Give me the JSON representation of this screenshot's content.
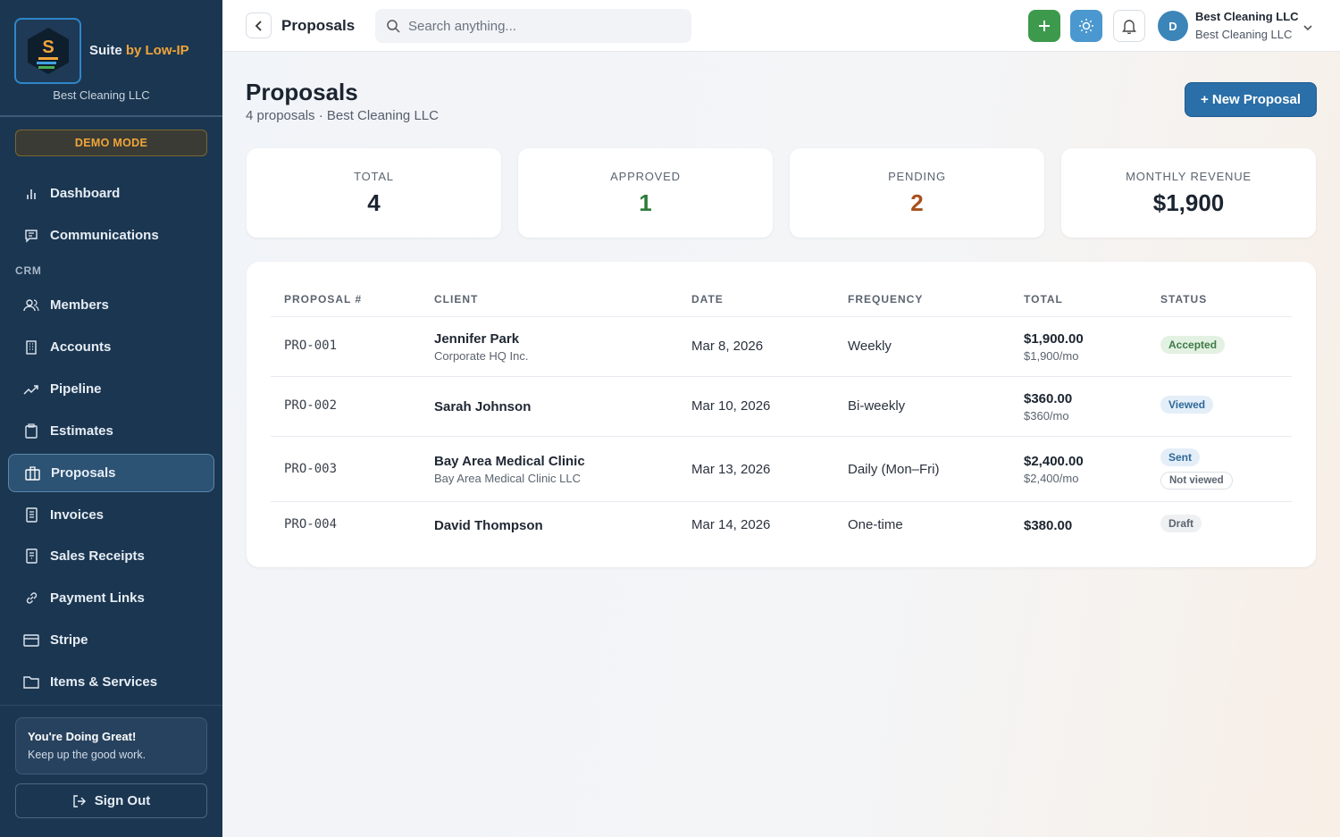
{
  "sidebar": {
    "brand_suite": "Suite ",
    "brand_by": "by Low-IP",
    "logo_letter": "S",
    "company": "Best Cleaning LLC",
    "demo_mode": "DEMO MODE",
    "section_crm": "CRM",
    "items": [
      {
        "label": "Dashboard",
        "icon": "bar-chart-icon"
      },
      {
        "label": "Communications",
        "icon": "chat-icon"
      },
      {
        "label": "Members",
        "icon": "users-icon"
      },
      {
        "label": "Accounts",
        "icon": "building-icon"
      },
      {
        "label": "Pipeline",
        "icon": "trend-icon"
      },
      {
        "label": "Estimates",
        "icon": "clipboard-icon"
      },
      {
        "label": "Proposals",
        "icon": "briefcase-icon",
        "active": true
      },
      {
        "label": "Invoices",
        "icon": "document-icon"
      },
      {
        "label": "Sales Receipts",
        "icon": "receipt-icon"
      },
      {
        "label": "Payment Links",
        "icon": "link-icon"
      },
      {
        "label": "Stripe",
        "icon": "card-icon"
      },
      {
        "label": "Items & Services",
        "icon": "folder-icon"
      }
    ],
    "encourage_title": "You're Doing Great!",
    "encourage_sub": "Keep up the good work.",
    "sign_out": "Sign Out"
  },
  "topbar": {
    "title": "Proposals",
    "search_placeholder": "Search anything...",
    "avatar_initial": "D",
    "account_name": "Best Cleaning LLC",
    "account_sub": "Best Cleaning LLC"
  },
  "page": {
    "title": "Proposals",
    "subtitle": "4 proposals · Best Cleaning LLC",
    "new_button": "+ New Proposal"
  },
  "stats": [
    {
      "label": "TOTAL",
      "value": "4",
      "color": "#1b2430"
    },
    {
      "label": "APPROVED",
      "value": "1",
      "color": "#2e7d3a"
    },
    {
      "label": "PENDING",
      "value": "2",
      "color": "#a8501d"
    },
    {
      "label": "MONTHLY REVENUE",
      "value": "$1,900",
      "color": "#1b2430"
    }
  ],
  "table": {
    "headers": [
      "PROPOSAL #",
      "CLIENT",
      "DATE",
      "FREQUENCY",
      "TOTAL",
      "STATUS"
    ],
    "rows": [
      {
        "number": "PRO-001",
        "client": "Jennifer Park",
        "client_sub": "Corporate HQ Inc.",
        "date": "Mar 8, 2026",
        "frequency": "Weekly",
        "total": "$1,900.00",
        "total_sub": "$1,900/mo",
        "status": "Accepted"
      },
      {
        "number": "PRO-002",
        "client": "Sarah Johnson",
        "client_sub": "",
        "date": "Mar 10, 2026",
        "frequency": "Bi-weekly",
        "total": "$360.00",
        "total_sub": "$360/mo",
        "status": "Viewed"
      },
      {
        "number": "PRO-003",
        "client": "Bay Area Medical Clinic",
        "client_sub": "Bay Area Medical Clinic LLC",
        "date": "Mar 13, 2026",
        "frequency": "Daily (Mon–Fri)",
        "total": "$2,400.00",
        "total_sub": "$2,400/mo",
        "status": "Sent",
        "status_note": "Not viewed"
      },
      {
        "number": "PRO-004",
        "client": "David Thompson",
        "client_sub": "",
        "date": "Mar 14, 2026",
        "frequency": "One-time",
        "total": "$380.00",
        "total_sub": "",
        "status": "Draft"
      }
    ]
  }
}
